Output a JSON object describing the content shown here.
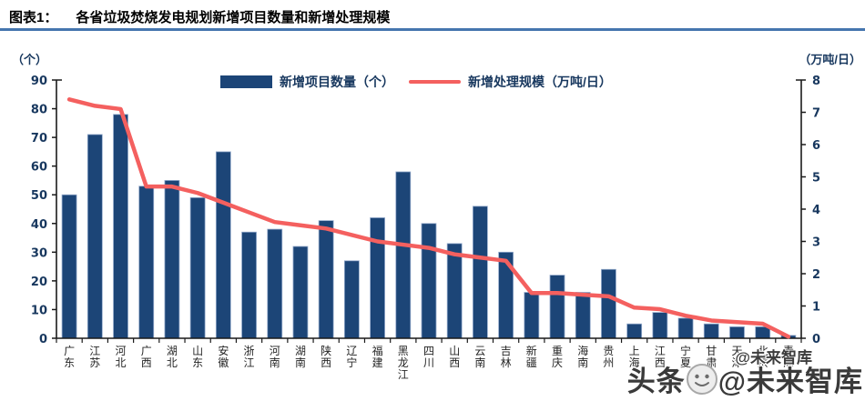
{
  "header": {
    "figure_label": "图表1：",
    "title": "各省垃圾焚烧发电规划新增项目数量和新增处理规模"
  },
  "axes": {
    "left_unit": "（个）",
    "right_unit": "（万吨/日）",
    "left_ticks": [
      0,
      10,
      20,
      30,
      40,
      50,
      60,
      70,
      80,
      90
    ],
    "right_ticks": [
      0,
      1,
      2,
      3,
      4,
      5,
      6,
      7,
      8
    ]
  },
  "legend": {
    "bar_label": "新增项目数量（个）",
    "line_label": "新增处理规模（万吨/日）"
  },
  "watermark": {
    "small": "@未来智库",
    "big_prefix": "头条",
    "big_suffix": "@未来智库",
    "face_icon": "meme-face-icon"
  },
  "colors": {
    "bar": "#1C4577",
    "bar_edge": "#93A9CB",
    "line": "#F4605F",
    "axis": "#1a1a1a",
    "tick_text": "#17375E",
    "title_rule": "#4576AE"
  },
  "chart_data": {
    "type": "combo-bar-line",
    "title": "各省垃圾焚烧发电规划新增项目数量和新增处理规模",
    "categories": [
      "广东",
      "江苏",
      "河北",
      "广西",
      "湖北",
      "山东",
      "安徽",
      "浙江",
      "河南",
      "湖南",
      "陕西",
      "辽宁",
      "福建",
      "黑龙江",
      "四川",
      "山西",
      "云南",
      "吉林",
      "新疆",
      "重庆",
      "海南",
      "贵州",
      "上海",
      "江西",
      "宁夏",
      "甘肃",
      "天津",
      "北京",
      "青海"
    ],
    "series": [
      {
        "name": "新增项目数量（个）",
        "type": "bar",
        "axis": "left",
        "values": [
          50,
          71,
          78,
          53,
          55,
          49,
          65,
          37,
          38,
          32,
          41,
          27,
          42,
          58,
          40,
          33,
          46,
          30,
          16,
          22,
          16,
          24,
          5,
          9,
          7,
          5,
          4,
          4,
          1
        ]
      },
      {
        "name": "新增处理规模（万吨/日）",
        "type": "line",
        "axis": "right",
        "values": [
          7.4,
          7.2,
          7.1,
          4.7,
          4.7,
          4.5,
          4.2,
          3.9,
          3.6,
          3.5,
          3.4,
          3.2,
          3.0,
          2.9,
          2.8,
          2.6,
          2.5,
          2.4,
          1.4,
          1.4,
          1.35,
          1.3,
          0.95,
          0.9,
          0.7,
          0.55,
          0.5,
          0.45,
          0.05
        ]
      }
    ],
    "ylabel_left": "（个）",
    "ylabel_right": "（万吨/日）",
    "ylim_left": [
      0,
      90
    ],
    "ylim_right": [
      0,
      8
    ],
    "grid": false,
    "legend_position": "top-center"
  }
}
